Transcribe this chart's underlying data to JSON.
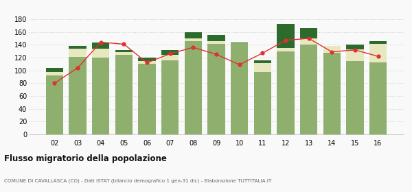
{
  "years": [
    "02",
    "03",
    "04",
    "05",
    "06",
    "07",
    "08",
    "09",
    "10",
    "11",
    "12",
    "13",
    "14",
    "15",
    "16"
  ],
  "iscritti_comuni": [
    92,
    121,
    120,
    124,
    110,
    116,
    146,
    141,
    143,
    98,
    130,
    140,
    128,
    115,
    113
  ],
  "iscritti_estero": [
    5,
    13,
    14,
    5,
    5,
    8,
    4,
    5,
    0,
    13,
    5,
    10,
    10,
    18,
    28
  ],
  "iscritti_altri": [
    7,
    4,
    10,
    3,
    5,
    8,
    10,
    9,
    1,
    5,
    38,
    16,
    0,
    7,
    5
  ],
  "cancellati": [
    80,
    104,
    144,
    141,
    112,
    126,
    136,
    125,
    109,
    127,
    147,
    150,
    129,
    132,
    122
  ],
  "color_comuni": "#8faf6e",
  "color_estero": "#e8e8c0",
  "color_altri": "#2d6b2d",
  "color_cancellati": "#e03030",
  "ylim": [
    0,
    180
  ],
  "yticks": [
    0,
    20,
    40,
    60,
    80,
    100,
    120,
    140,
    160,
    180
  ],
  "title": "Flusso migratorio della popolazione",
  "subtitle": "COMUNE DI CAVALLASCA (CO) - Dati ISTAT (bilancio demografico 1 gen-31 dic) - Elaborazione TUTTITALIA.IT",
  "background_color": "#f9f9f9",
  "grid_color": "#cccccc"
}
